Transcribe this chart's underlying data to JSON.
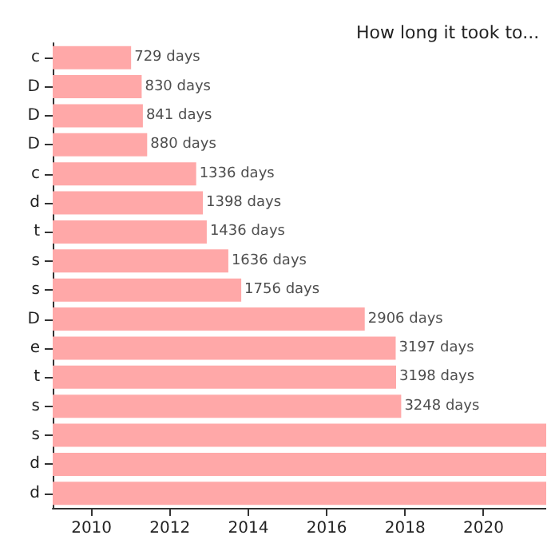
{
  "chart_data": {
    "type": "bar",
    "orientation": "horizontal",
    "title": "How long it took to...",
    "categories": [
      "c",
      "D",
      "D",
      "D",
      "c",
      "d",
      "t",
      "s",
      "s",
      "D",
      "e",
      "t",
      "s",
      "s",
      "d",
      "d"
    ],
    "base": [
      2009.01,
      2009.01,
      2009.01,
      2009.01,
      2009.01,
      2009.01,
      2009.01,
      2009.01,
      2009.01,
      2009.01,
      2009.01,
      2009.01,
      2009.01,
      2009.01,
      2009.01,
      2009.01
    ],
    "values": [
      2.0,
      2.27,
      2.3,
      2.41,
      3.66,
      3.83,
      3.93,
      4.48,
      4.81,
      7.96,
      8.75,
      8.76,
      8.89,
      12.59,
      12.59,
      12.59
    ],
    "annotations": [
      {
        "text": "729 days",
        "x": 2011.01
      },
      {
        "text": "830 days",
        "x": 2011.28
      },
      {
        "text": "841 days",
        "x": 2011.31
      },
      {
        "text": "880 days",
        "x": 2011.42
      },
      {
        "text": "1336 days",
        "x": 2012.67
      },
      {
        "text": "1398 days",
        "x": 2012.84
      },
      {
        "text": "1436 days",
        "x": 2012.94
      },
      {
        "text": "1636 days",
        "x": 2013.49
      },
      {
        "text": "1756 days",
        "x": 2013.82
      },
      {
        "text": "2906 days",
        "x": 2016.97
      },
      {
        "text": "3197 days",
        "x": 2017.76
      },
      {
        "text": "3198 days",
        "x": 2017.77
      },
      {
        "text": "3248 days",
        "x": 2017.9
      }
    ],
    "color": "#ffa8a8",
    "xlim": [
      2009.01,
      2021.6
    ],
    "xticks": [
      2010,
      2012,
      2014,
      2016,
      2018,
      2020
    ],
    "grid": false
  }
}
